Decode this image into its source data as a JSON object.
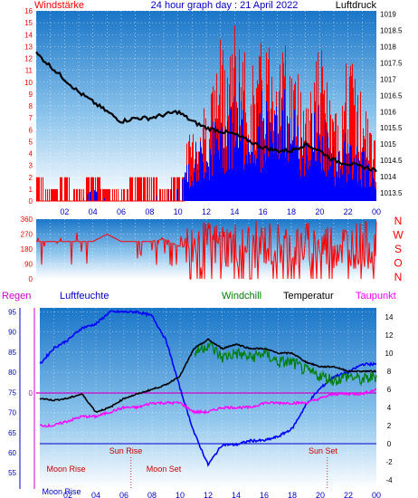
{
  "chart_data": [
    {
      "type": "bar",
      "title": "24 hour graph day : 21 April 2022",
      "left_axis_title": "Windstärke",
      "right_axis_title": "Luftdruck",
      "x_ticks": [
        "02",
        "04",
        "06",
        "08",
        "10",
        "12",
        "14",
        "16",
        "18",
        "20",
        "22",
        "00"
      ],
      "wind_axis": {
        "min": 0,
        "max": 16,
        "ticks": [
          "0",
          "1",
          "2",
          "3",
          "4",
          "5",
          "6",
          "7",
          "8",
          "9",
          "10",
          "11",
          "12",
          "13",
          "14",
          "15",
          "16"
        ]
      },
      "pressure_axis": {
        "min": 1013.25,
        "max": 1019.1,
        "ticks": [
          "1013.5",
          "1014",
          "1014.5",
          "1015",
          "1015.5",
          "1016",
          "1016.5",
          "1017",
          "1017.5",
          "1018",
          "1018.5",
          "1019"
        ]
      },
      "series": [
        {
          "name": "Windstärke",
          "kind": "gust",
          "color": "#ff0000",
          "hours": [
            0,
            1,
            2,
            3,
            4,
            5,
            6,
            7,
            8,
            9,
            10,
            11,
            12,
            13,
            14,
            15,
            16,
            17,
            18,
            19,
            20,
            21,
            22,
            23,
            24
          ],
          "values": [
            2,
            1,
            2,
            1,
            2,
            1,
            1,
            2,
            2,
            1,
            2,
            7,
            9,
            14,
            16,
            11,
            14,
            16,
            12,
            10,
            14,
            7,
            13,
            9,
            5
          ]
        },
        {
          "name": "Windstärke",
          "kind": "average",
          "color": "#0000ff",
          "hours": [
            0,
            1,
            2,
            3,
            4,
            5,
            6,
            7,
            8,
            9,
            10,
            11,
            12,
            13,
            14,
            15,
            16,
            17,
            18,
            19,
            20,
            21,
            22,
            23,
            24
          ],
          "values": [
            0,
            0,
            0,
            0,
            1,
            0,
            0,
            0,
            0,
            1,
            1,
            4,
            5,
            7,
            9,
            7,
            8,
            9,
            7,
            6,
            7,
            4,
            5,
            4,
            2
          ]
        },
        {
          "name": "Luftdruck",
          "kind": "pressure",
          "color": "#000000",
          "hours": [
            0,
            0.5,
            1,
            2,
            3,
            4,
            5,
            6,
            7,
            8,
            9,
            10,
            11,
            12,
            13,
            14,
            15,
            16,
            17,
            18,
            19,
            20,
            21,
            22,
            23,
            24
          ],
          "values": [
            1017.8,
            1017.6,
            1017.4,
            1017.0,
            1016.6,
            1016.3,
            1016.0,
            1015.7,
            1015.8,
            1015.8,
            1015.9,
            1016.0,
            1015.7,
            1015.5,
            1015.4,
            1015.3,
            1015.1,
            1014.9,
            1014.8,
            1014.8,
            1015.0,
            1014.8,
            1014.5,
            1014.4,
            1014.3,
            1014.2
          ]
        }
      ]
    },
    {
      "type": "line",
      "direction_axis": {
        "min": 0,
        "max": 360,
        "ticks": [
          "0",
          "90",
          "180",
          "270",
          "360"
        ]
      },
      "compass_labels": [
        "N",
        "W",
        "S",
        "O",
        "N"
      ],
      "series": [
        {
          "name": "Windrichtung",
          "color": "#ff0000",
          "hours": [
            0,
            1,
            2,
            3,
            4,
            5,
            6,
            7,
            8,
            9,
            10,
            11,
            12,
            13,
            14,
            15,
            16,
            17,
            18,
            19,
            20,
            21,
            22,
            23,
            24
          ],
          "values": [
            225,
            225,
            225,
            225,
            225,
            270,
            225,
            225,
            225,
            240,
            200,
            180,
            260,
            240,
            230,
            250,
            220,
            240,
            230,
            200,
            240,
            230,
            250,
            240,
            240
          ]
        }
      ]
    },
    {
      "type": "line",
      "headers": {
        "rain": "Regen",
        "humidity": "Luftfeuchte",
        "windchill": "Windchill",
        "temperature": "Temperatur",
        "dewpoint": "Taupunkt"
      },
      "humidity_axis": {
        "min": 51,
        "max": 96,
        "ticks": [
          "55",
          "60",
          "65",
          "70",
          "75",
          "80",
          "85",
          "90",
          "95"
        ]
      },
      "temperature_axis": {
        "min": -5,
        "max": 15,
        "ticks": [
          "-4",
          "-2",
          "0",
          "2",
          "4",
          "6",
          "8",
          "10",
          "12",
          "14"
        ]
      },
      "rain_value": "0",
      "annotations": {
        "sun_rise": "Sun Rise",
        "sun_set": "Sun Set",
        "moon_rise": "Moon Rise",
        "moon_set": "Moon Set"
      },
      "series": [
        {
          "name": "Luftfeuchte",
          "color": "#0000ff",
          "hours": [
            0,
            1,
            2,
            3,
            4,
            5,
            6,
            7,
            8,
            9,
            10,
            11,
            12,
            13,
            14,
            15,
            16,
            17,
            18,
            19,
            20,
            21,
            22,
            23,
            24
          ],
          "values": [
            82,
            86,
            88,
            91,
            92,
            95,
            95,
            95,
            94,
            88,
            76,
            65,
            57,
            62,
            62,
            63,
            63,
            64,
            66,
            72,
            76,
            79,
            80,
            82,
            82
          ]
        },
        {
          "name": "Temperatur",
          "color": "#000000",
          "hours": [
            0,
            1,
            2,
            3,
            4,
            5,
            6,
            7,
            8,
            9,
            10,
            11,
            12,
            13,
            14,
            15,
            16,
            17,
            18,
            19,
            20,
            21,
            22,
            23,
            24
          ],
          "values": [
            5,
            4.8,
            5,
            5.5,
            3.5,
            4,
            5,
            5.5,
            6,
            6.5,
            7.5,
            10.5,
            11.5,
            10.5,
            11,
            10.5,
            10.5,
            10,
            10,
            9,
            8.5,
            8.5,
            8,
            8,
            8
          ]
        },
        {
          "name": "Windchill",
          "color": "#008000",
          "hours": [
            11,
            12,
            13,
            14,
            15,
            16,
            17,
            18,
            19,
            20,
            21,
            22,
            23,
            24
          ],
          "values": [
            10,
            11,
            9.5,
            10,
            9.5,
            10,
            9,
            9,
            8,
            7.5,
            7,
            7.5,
            7,
            7.5
          ]
        },
        {
          "name": "Taupunkt",
          "color": "#ff00ff",
          "hours": [
            0,
            1,
            2,
            3,
            4,
            5,
            6,
            7,
            8,
            9,
            10,
            11,
            12,
            13,
            14,
            15,
            16,
            17,
            18,
            19,
            20,
            21,
            22,
            23,
            24
          ],
          "values": [
            2,
            2,
            2.5,
            3,
            3,
            3.5,
            4,
            4,
            4.5,
            4.5,
            4.5,
            3.5,
            3.5,
            4,
            4,
            4,
            4.5,
            4.5,
            4.5,
            4.5,
            5,
            5.5,
            5.5,
            5.5,
            6
          ]
        }
      ]
    }
  ]
}
